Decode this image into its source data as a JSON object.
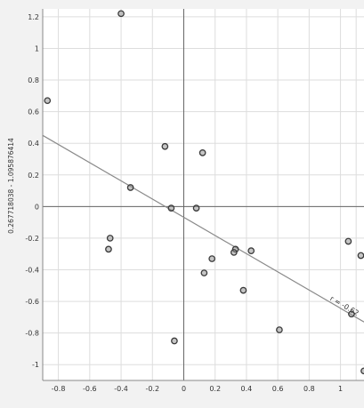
{
  "chart_data": {
    "type": "scatter",
    "title": "",
    "xlabel": "",
    "ylabel": "0.267718038 - 1.095876414",
    "xlim": [
      -0.9,
      1.15
    ],
    "ylim": [
      -1.1,
      1.25
    ],
    "xticks": [
      -0.8,
      -0.6,
      -0.4,
      -0.2,
      0,
      0.2,
      0.4,
      0.6,
      0.8,
      1
    ],
    "yticks": [
      1.2,
      1,
      0.8,
      0.6,
      0.4,
      0.2,
      0,
      -0.2,
      -0.4,
      -0.6,
      -0.8,
      -1
    ],
    "xtick_labels": [
      "-0.8",
      "-0.6",
      "-0.4",
      "-0.2",
      "0",
      "0.2",
      "0.4",
      "0.6",
      "0.8",
      "1"
    ],
    "ytick_labels": [
      "1.2",
      "1",
      "0.8",
      "0.6",
      "0.4",
      "0.2",
      "0",
      "-0.2",
      "-0.4",
      "-0.6",
      "-0.8",
      "-1"
    ],
    "grid": true,
    "points": [
      {
        "x": -0.4,
        "y": 1.22
      },
      {
        "x": -0.87,
        "y": 0.67
      },
      {
        "x": -0.12,
        "y": 0.38
      },
      {
        "x": 0.12,
        "y": 0.34
      },
      {
        "x": -0.34,
        "y": 0.12
      },
      {
        "x": -0.08,
        "y": -0.01
      },
      {
        "x": 0.08,
        "y": -0.01
      },
      {
        "x": -0.47,
        "y": -0.2
      },
      {
        "x": -0.48,
        "y": -0.27
      },
      {
        "x": 0.18,
        "y": -0.33
      },
      {
        "x": 0.33,
        "y": -0.27
      },
      {
        "x": 0.32,
        "y": -0.29
      },
      {
        "x": 0.43,
        "y": -0.28
      },
      {
        "x": 0.13,
        "y": -0.42
      },
      {
        "x": 0.38,
        "y": -0.53
      },
      {
        "x": 0.61,
        "y": -0.78
      },
      {
        "x": -0.06,
        "y": -0.85
      },
      {
        "x": 1.05,
        "y": -0.22
      },
      {
        "x": 1.13,
        "y": -0.31
      },
      {
        "x": 1.07,
        "y": -0.68
      },
      {
        "x": 1.15,
        "y": -1.04
      }
    ],
    "trendline": {
      "x": [
        -0.9,
        1.15
      ],
      "y": [
        0.45,
        -0.73
      ]
    },
    "annotation": "r = -0.62",
    "colors": {
      "marker_stroke": "#3a3a3a",
      "marker_fill": "#8c8c8c",
      "line": "#8a8a8a",
      "grid": "#dddddd",
      "axis": "#666666"
    }
  }
}
